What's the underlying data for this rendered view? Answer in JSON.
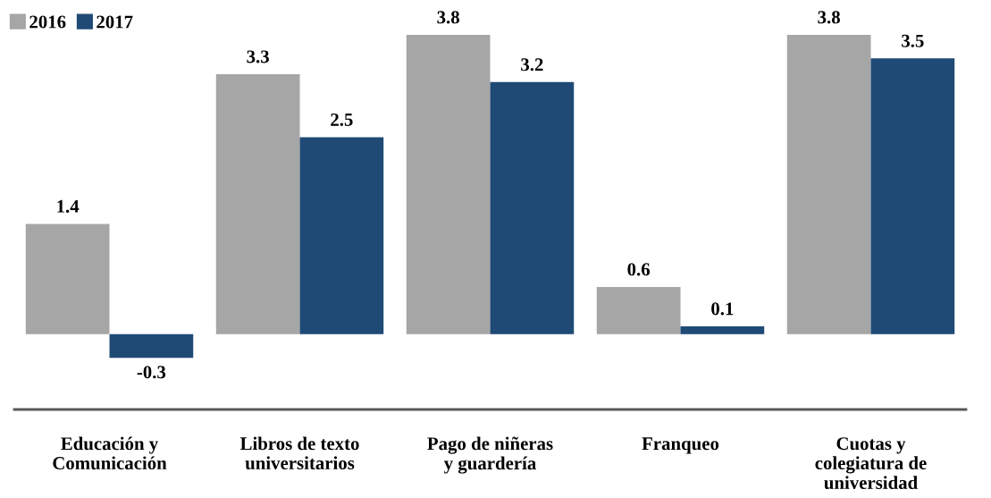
{
  "chart_data": {
    "type": "bar",
    "categories": [
      "Educación y\nComunicación",
      "Libros de texto\nuniversitarios",
      "Pago de niñeras\ny guardería",
      "Franqueo",
      "Cuotas y\ncolegiatura de\nuniversidad"
    ],
    "series": [
      {
        "name": "2016",
        "color": "#a6a6a6",
        "values": [
          1.4,
          3.3,
          3.8,
          0.6,
          3.8
        ]
      },
      {
        "name": "2017",
        "color": "#1f4a75",
        "values": [
          -0.3,
          2.5,
          3.2,
          0.1,
          3.5
        ]
      }
    ],
    "tick_labels": "x",
    "data_labels": true,
    "legend": "top left",
    "grid": false
  }
}
